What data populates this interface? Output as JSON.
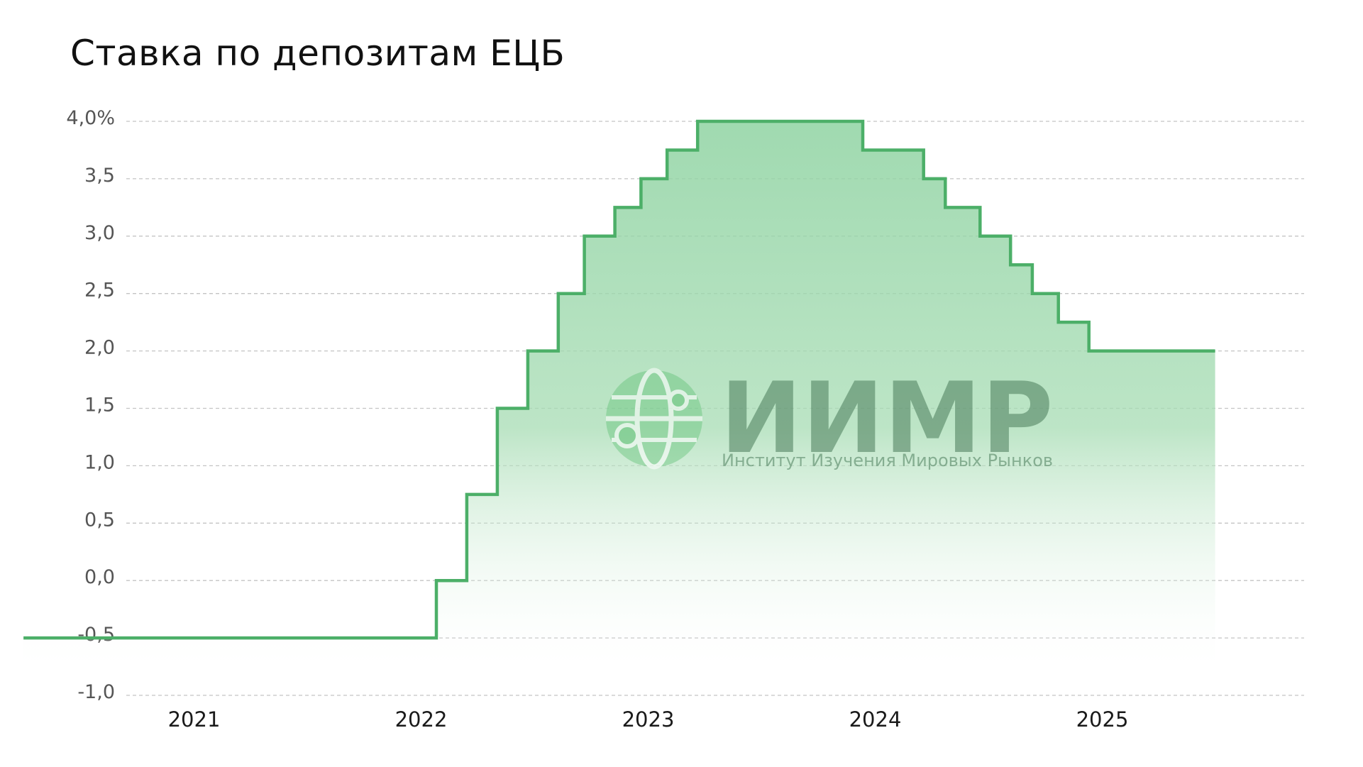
{
  "chart_data": {
    "type": "area",
    "title": "Ставка по депозитам ЕЦБ",
    "xlabel": "",
    "ylabel": "",
    "ylim": [
      -1.0,
      4.0
    ],
    "y_ticks": [
      {
        "value": 4.0,
        "label": "4,0%"
      },
      {
        "value": 3.5,
        "label": "3,5"
      },
      {
        "value": 3.0,
        "label": "3,0"
      },
      {
        "value": 2.5,
        "label": "2,5"
      },
      {
        "value": 2.0,
        "label": "2,0"
      },
      {
        "value": 1.5,
        "label": "1,5"
      },
      {
        "value": 1.0,
        "label": "1,0"
      },
      {
        "value": 0.5,
        "label": "0,5"
      },
      {
        "value": 0.0,
        "label": "0,0"
      },
      {
        "value": -0.5,
        "label": "-0,5"
      },
      {
        "value": -1.0,
        "label": "-1,0"
      }
    ],
    "x_ticks": [
      "2021",
      "2022",
      "2023",
      "2024",
      "2025"
    ],
    "grid": true,
    "line_color": "#4caf68",
    "fill_color": "#8fd3a2",
    "series": [
      {
        "name": "",
        "step": "post",
        "points": [
          {
            "date": "2020-10-01",
            "value": -0.5
          },
          {
            "date": "2022-07-27",
            "value": 0.0
          },
          {
            "date": "2022-09-14",
            "value": 0.75
          },
          {
            "date": "2022-11-02",
            "value": 1.5
          },
          {
            "date": "2022-12-21",
            "value": 2.0
          },
          {
            "date": "2023-02-08",
            "value": 2.5
          },
          {
            "date": "2023-03-22",
            "value": 3.0
          },
          {
            "date": "2023-05-10",
            "value": 3.25
          },
          {
            "date": "2023-06-21",
            "value": 3.5
          },
          {
            "date": "2023-08-02",
            "value": 3.75
          },
          {
            "date": "2023-09-20",
            "value": 4.0
          },
          {
            "date": "2024-06-12",
            "value": 3.75
          },
          {
            "date": "2024-09-18",
            "value": 3.5
          },
          {
            "date": "2024-10-23",
            "value": 3.25
          },
          {
            "date": "2024-12-18",
            "value": 3.0
          },
          {
            "date": "2025-02-05",
            "value": 2.75
          },
          {
            "date": "2025-03-12",
            "value": 2.5
          },
          {
            "date": "2025-04-23",
            "value": 2.25
          },
          {
            "date": "2025-06-11",
            "value": 2.0
          },
          {
            "date": "2025-12-31",
            "value": 2.0
          }
        ]
      }
    ]
  },
  "watermark": {
    "main": "ИИМР",
    "sub": "Институт Изучения Мировых Рынков",
    "icon": "globe-network-icon"
  }
}
